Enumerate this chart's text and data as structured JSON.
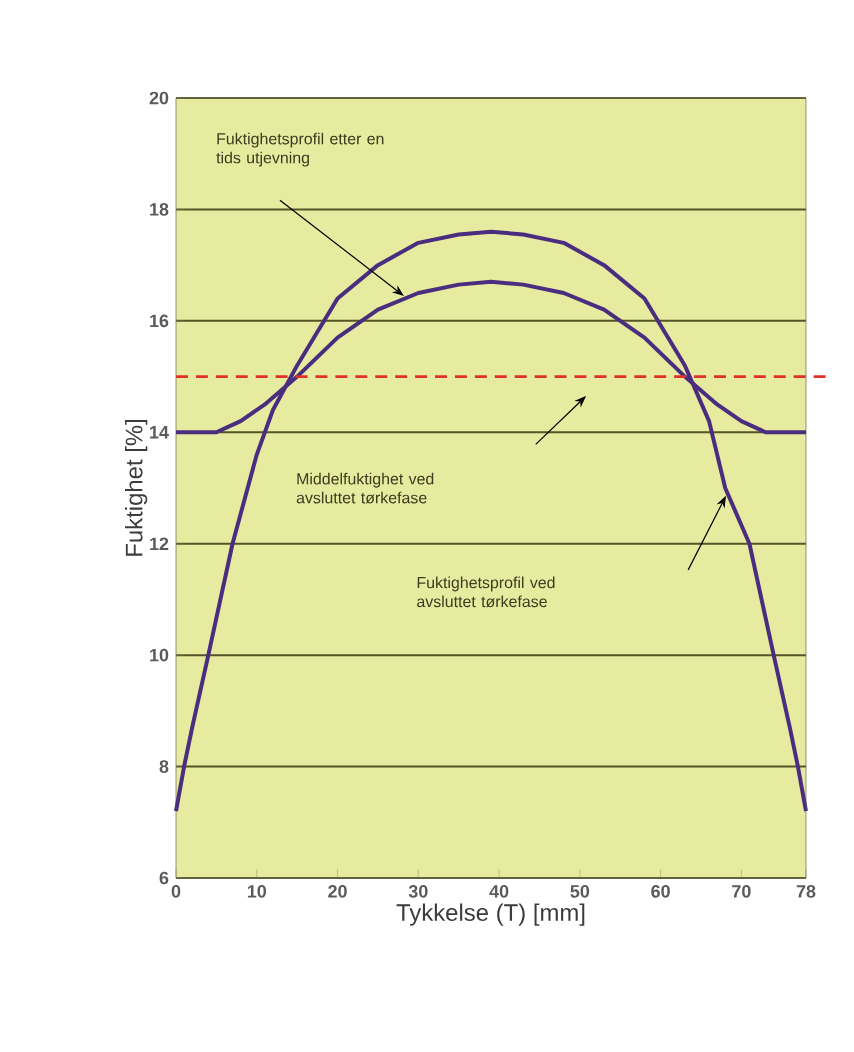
{
  "chart_data": {
    "type": "line",
    "xlabel": "Tykkelse (T) [mm]",
    "ylabel": "Fuktighet [%]",
    "xlim": [
      0,
      78
    ],
    "ylim": [
      6,
      20
    ],
    "xticks": [
      0,
      10,
      20,
      30,
      40,
      50,
      60,
      70,
      78
    ],
    "yticks": [
      6,
      8,
      10,
      12,
      14,
      16,
      18,
      20
    ],
    "grid": "y",
    "marker": "none",
    "line_style": "solid",
    "series": [
      {
        "color": "#4b2d7f",
        "x": [
          0,
          1,
          2,
          4,
          7,
          10,
          12,
          15,
          20,
          25,
          30,
          35,
          39,
          43,
          48,
          53,
          58,
          63,
          66,
          68,
          71,
          74,
          76,
          77,
          78
        ],
        "values": [
          7.2,
          8,
          8.7,
          10,
          12,
          13.6,
          14.4,
          15.2,
          16.4,
          17.0,
          17.4,
          17.55,
          17.6,
          17.55,
          17.4,
          17.0,
          16.4,
          15.2,
          14.2,
          13,
          12,
          10,
          8.7,
          8,
          7.2
        ]
      },
      {
        "color": "#4b2d7f",
        "x": [
          0,
          3,
          5,
          8,
          11,
          15,
          20,
          25,
          30,
          35,
          39,
          43,
          48,
          53,
          58,
          63,
          67,
          70,
          73,
          75,
          78
        ],
        "values": [
          14,
          14,
          14,
          14.2,
          14.5,
          15.0,
          15.7,
          16.2,
          16.5,
          16.65,
          16.7,
          16.65,
          16.5,
          16.2,
          15.7,
          15.0,
          14.5,
          14.2,
          14,
          14,
          14
        ]
      }
    ],
    "ref_lines": [
      {
        "axis": "y",
        "value": 15,
        "color": "#e0302a",
        "line_style": "dashed"
      }
    ],
    "annotations": [
      "Fuktighetsprofil etter en tids utjevning",
      "Middelfuktighet ved avsluttet tørkefase",
      "Fuktighetsprofil ved avsluttet tørkefase"
    ]
  }
}
